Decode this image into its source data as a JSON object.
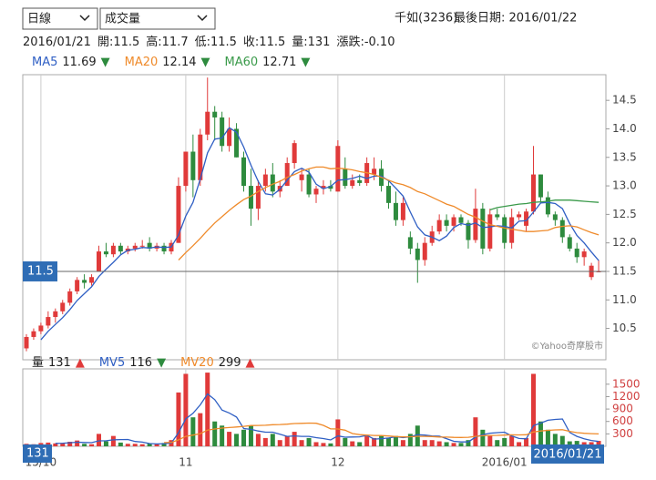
{
  "controls": {
    "period": "日線",
    "indicator": "成交量"
  },
  "header": {
    "stock": "千如(3236)",
    "last_date": "最後日期: 2016/01/22",
    "quote": [
      "2016/01/21",
      "開:11.5",
      "高:11.7",
      "低:11.5",
      "收:11.5",
      "量:131",
      "漲跌:-0.10"
    ]
  },
  "crosshair": {
    "price": 11.5,
    "volume": 131,
    "date": "2016/01/21"
  },
  "chart_data": [
    {
      "type": "candlestick",
      "source": "©Yahoo奇摩股市",
      "up_color": "#e03a3a",
      "down_color": "#2e8b3e",
      "categories": [
        null,
        null,
        "15/10",
        null,
        null,
        null,
        null,
        null,
        null,
        null,
        null,
        null,
        null,
        null,
        null,
        null,
        null,
        null,
        null,
        null,
        null,
        null,
        "11",
        null,
        null,
        null,
        null,
        null,
        null,
        null,
        null,
        null,
        null,
        null,
        null,
        null,
        null,
        null,
        null,
        null,
        null,
        null,
        null,
        "12",
        null,
        null,
        null,
        null,
        null,
        null,
        null,
        null,
        null,
        null,
        null,
        null,
        null,
        null,
        null,
        null,
        null,
        null,
        null,
        null,
        null,
        null,
        "2016/01",
        null,
        null,
        null,
        null,
        null,
        null,
        null,
        null,
        null,
        null,
        null,
        null,
        null
      ],
      "open": [
        10.15,
        10.35,
        10.45,
        10.55,
        10.7,
        10.8,
        10.95,
        11.15,
        11.35,
        11.3,
        11.5,
        11.85,
        11.8,
        11.95,
        11.85,
        11.9,
        11.95,
        12.0,
        11.9,
        11.95,
        11.85,
        12.0,
        13.0,
        13.6,
        13.1,
        13.9,
        14.3,
        14.2,
        13.7,
        14.0,
        13.5,
        13.0,
        12.6,
        13.0,
        13.2,
        12.9,
        13.0,
        13.4,
        13.1,
        13.2,
        12.85,
        12.95,
        13.0,
        12.9,
        13.3,
        13.0,
        13.1,
        13.05,
        13.2,
        13.3,
        13.0,
        12.7,
        12.4,
        12.1,
        11.9,
        11.7,
        12.0,
        12.2,
        12.4,
        12.3,
        12.45,
        12.35,
        12.05,
        12.6,
        11.9,
        12.5,
        12.45,
        12.0,
        12.45,
        12.3,
        12.55,
        13.2,
        12.8,
        12.5,
        12.4,
        12.1,
        11.9,
        11.75,
        11.4,
        11.5
      ],
      "high": [
        10.4,
        10.5,
        10.6,
        10.8,
        10.85,
        11.0,
        11.2,
        11.4,
        11.45,
        11.45,
        11.95,
        12.0,
        12.0,
        12.0,
        11.95,
        12.0,
        12.05,
        12.1,
        12.0,
        12.0,
        12.05,
        13.15,
        13.6,
        13.9,
        14.0,
        14.9,
        14.4,
        14.3,
        14.2,
        14.1,
        13.6,
        13.3,
        13.1,
        13.3,
        13.4,
        13.1,
        13.5,
        13.8,
        13.3,
        13.3,
        13.0,
        13.1,
        13.1,
        13.8,
        13.5,
        13.2,
        13.2,
        13.5,
        13.5,
        13.45,
        13.1,
        12.9,
        12.8,
        12.2,
        12.0,
        12.1,
        12.3,
        12.5,
        12.5,
        12.5,
        12.5,
        12.4,
        12.95,
        12.7,
        12.6,
        12.6,
        12.5,
        12.6,
        12.55,
        12.6,
        13.7,
        13.2,
        12.9,
        12.55,
        12.45,
        12.15,
        12.0,
        11.9,
        11.65,
        11.7
      ],
      "low": [
        10.1,
        10.3,
        10.4,
        10.5,
        10.6,
        10.75,
        10.9,
        11.1,
        11.2,
        11.25,
        11.5,
        11.75,
        11.75,
        11.8,
        11.8,
        11.85,
        11.9,
        11.85,
        11.85,
        11.8,
        11.8,
        12.0,
        12.9,
        12.8,
        13.0,
        13.8,
        13.8,
        13.6,
        13.6,
        13.5,
        12.9,
        12.3,
        12.4,
        12.9,
        12.8,
        12.8,
        13.0,
        13.3,
        12.9,
        12.8,
        12.7,
        12.85,
        12.9,
        12.9,
        12.95,
        12.95,
        13.0,
        13.0,
        13.1,
        12.9,
        12.6,
        12.3,
        12.3,
        11.8,
        11.3,
        11.6,
        11.95,
        12.15,
        12.2,
        12.2,
        12.3,
        11.9,
        12.0,
        11.8,
        11.85,
        12.4,
        11.9,
        11.9,
        12.4,
        12.2,
        12.5,
        12.7,
        12.45,
        12.3,
        12.0,
        11.85,
        11.65,
        11.6,
        11.35,
        11.5
      ],
      "close": [
        10.35,
        10.45,
        10.55,
        10.7,
        10.8,
        10.95,
        11.15,
        11.35,
        11.3,
        11.4,
        11.85,
        11.8,
        11.95,
        11.85,
        11.9,
        11.95,
        11.95,
        11.9,
        11.95,
        11.85,
        12.0,
        13.0,
        13.6,
        13.1,
        13.9,
        14.3,
        14.2,
        13.7,
        14.0,
        13.5,
        13.0,
        12.6,
        13.0,
        13.2,
        12.9,
        13.0,
        13.4,
        13.75,
        13.2,
        12.85,
        12.95,
        13.0,
        12.95,
        13.7,
        13.0,
        13.1,
        13.05,
        13.4,
        13.3,
        13.0,
        12.7,
        12.4,
        12.7,
        11.9,
        11.7,
        12.0,
        12.2,
        12.4,
        12.3,
        12.45,
        12.35,
        12.05,
        12.6,
        11.9,
        12.5,
        12.45,
        12.0,
        12.45,
        12.5,
        12.55,
        13.2,
        12.8,
        12.5,
        12.4,
        12.1,
        11.9,
        11.75,
        11.85,
        11.6,
        11.5
      ],
      "series": [
        {
          "name": "MA5",
          "color": "#2f5fc4",
          "trend": "▼",
          "trend_color": "#2e8b3e",
          "values": [
            null,
            null,
            10.3,
            10.45,
            10.57,
            10.69,
            10.83,
            10.99,
            11.11,
            11.23,
            11.41,
            11.54,
            11.66,
            11.79,
            11.87,
            11.89,
            11.92,
            11.91,
            11.93,
            11.92,
            11.93,
            12.14,
            12.47,
            12.71,
            13.12,
            13.58,
            13.82,
            13.84,
            14.02,
            13.94,
            13.68,
            13.36,
            13.08,
            12.86,
            12.84,
            12.94,
            13.1,
            13.25,
            13.31,
            13.24,
            13.03,
            12.95,
            12.99,
            13.1,
            13.11,
            13.13,
            13.17,
            13.13,
            13.17,
            13.17,
            13.09,
            12.96,
            12.82,
            12.54,
            12.28,
            12.14,
            12.1,
            12.04,
            12.12,
            12.27,
            12.34,
            12.31,
            12.35,
            12.27,
            12.28,
            12.3,
            12.29,
            12.26,
            12.38,
            12.39,
            12.54,
            12.7,
            12.71,
            12.69,
            12.6,
            12.34,
            12.13,
            12.0,
            11.84,
            11.69
          ]
        },
        {
          "name": "MA20",
          "color": "#ef8a2a",
          "trend": "▼",
          "trend_color": "#2e8b3e",
          "values": [
            null,
            null,
            null,
            null,
            null,
            null,
            null,
            null,
            null,
            null,
            null,
            null,
            null,
            null,
            null,
            null,
            null,
            null,
            null,
            null,
            null,
            11.7,
            11.83,
            11.95,
            12.08,
            12.22,
            12.35,
            12.46,
            12.57,
            12.67,
            12.76,
            12.82,
            12.9,
            12.97,
            13.03,
            13.08,
            13.15,
            13.2,
            13.26,
            13.3,
            13.33,
            13.33,
            13.3,
            13.31,
            13.3,
            13.28,
            13.25,
            13.23,
            13.2,
            13.15,
            13.1,
            13.05,
            13.02,
            12.97,
            12.9,
            12.86,
            12.8,
            12.74,
            12.68,
            12.64,
            12.57,
            12.5,
            12.45,
            12.38,
            12.32,
            12.29,
            12.26,
            12.24,
            12.22,
            12.2,
            12.2,
            12.21,
            12.22,
            12.27,
            12.29,
            12.3,
            12.28,
            12.23,
            12.18,
            12.14
          ]
        },
        {
          "name": "MA60",
          "color": "#3a9a4a",
          "trend": "▼",
          "trend_color": "#2e8b3e",
          "values": [
            null,
            null,
            null,
            null,
            null,
            null,
            null,
            null,
            null,
            null,
            null,
            null,
            null,
            null,
            null,
            null,
            null,
            null,
            null,
            null,
            null,
            null,
            null,
            null,
            null,
            null,
            null,
            null,
            null,
            null,
            null,
            null,
            null,
            null,
            null,
            null,
            null,
            null,
            null,
            null,
            null,
            null,
            null,
            null,
            null,
            null,
            null,
            null,
            null,
            null,
            null,
            null,
            null,
            null,
            null,
            null,
            null,
            null,
            null,
            null,
            null,
            null,
            null,
            null,
            12.58,
            12.62,
            12.64,
            12.66,
            12.68,
            12.69,
            12.71,
            12.72,
            12.73,
            12.75,
            12.75,
            12.75,
            12.74,
            12.73,
            12.72,
            12.71
          ]
        }
      ],
      "ylim": [
        9.95,
        14.95
      ],
      "yticks": [
        10.5,
        {
          "value": 11,
          "label": "11.0"
        },
        11.5,
        {
          "value": 12,
          "label": "12.0"
        },
        12.5,
        {
          "value": 13,
          "label": "13.0"
        },
        13.5,
        {
          "value": 14,
          "label": "14.0"
        },
        14.5
      ]
    },
    {
      "type": "bar",
      "name": "量",
      "trend": "▲",
      "trend_color": "#e03a3a",
      "values": [
        60,
        50,
        80,
        90,
        70,
        80,
        110,
        140,
        60,
        50,
        300,
        120,
        250,
        90,
        60,
        60,
        50,
        70,
        50,
        80,
        150,
        1300,
        1750,
        700,
        800,
        1780,
        600,
        500,
        350,
        300,
        400,
        500,
        300,
        200,
        300,
        150,
        250,
        350,
        150,
        200,
        100,
        80,
        70,
        650,
        200,
        120,
        100,
        250,
        200,
        250,
        200,
        250,
        150,
        300,
        500,
        150,
        150,
        120,
        100,
        80,
        80,
        150,
        700,
        400,
        250,
        150,
        200,
        250,
        100,
        200,
        1750,
        600,
        400,
        300,
        250,
        120,
        130,
        100,
        100,
        131
      ],
      "series": [
        {
          "name": "MV5",
          "color": "#2f5fc4",
          "trend": "▼",
          "trend_color": "#2e8b3e",
          "values": [
            null,
            null,
            null,
            null,
            70,
            74,
            86,
            98,
            92,
            88,
            132,
            134,
            156,
            162,
            164,
            116,
            102,
            66,
            58,
            62,
            80,
            330,
            664,
            796,
            1000,
            1266,
            1126,
            876,
            806,
            706,
            430,
            410,
            370,
            340,
            340,
            290,
            240,
            250,
            240,
            240,
            210,
            186,
            154,
            250,
            220,
            224,
            228,
            264,
            174,
            184,
            200,
            230,
            210,
            230,
            280,
            270,
            250,
            244,
            184,
            120,
            106,
            106,
            222,
            282,
            316,
            330,
            340,
            250,
            190,
            180,
            500,
            560,
            630,
            650,
            660,
            334,
            240,
            180,
            140,
            116
          ]
        },
        {
          "name": "MV20",
          "color": "#ef8a2a",
          "trend": "▲",
          "trend_color": "#e03a3a",
          "values": [
            null,
            null,
            null,
            null,
            null,
            null,
            null,
            null,
            null,
            null,
            null,
            null,
            null,
            null,
            null,
            null,
            null,
            null,
            null,
            91,
            95,
            156,
            240,
            270,
            306,
            391,
            418,
            439,
            453,
            466,
            482,
            501,
            504,
            509,
            521,
            525,
            535,
            549,
            554,
            560,
            557,
            506,
            422,
            419,
            390,
            307,
            282,
            270,
            262,
            259,
            249,
            236,
            227,
            230,
            240,
            240,
            235,
            224,
            222,
            216,
            214,
            217,
            240,
            255,
            262,
            265,
            270,
            278,
            275,
            280,
            345,
            370,
            385,
            395,
            400,
            360,
            330,
            315,
            305,
            299
          ]
        }
      ],
      "ylim": [
        0,
        1870
      ],
      "yticks": [
        300,
        600,
        900,
        1200,
        1500
      ]
    }
  ]
}
